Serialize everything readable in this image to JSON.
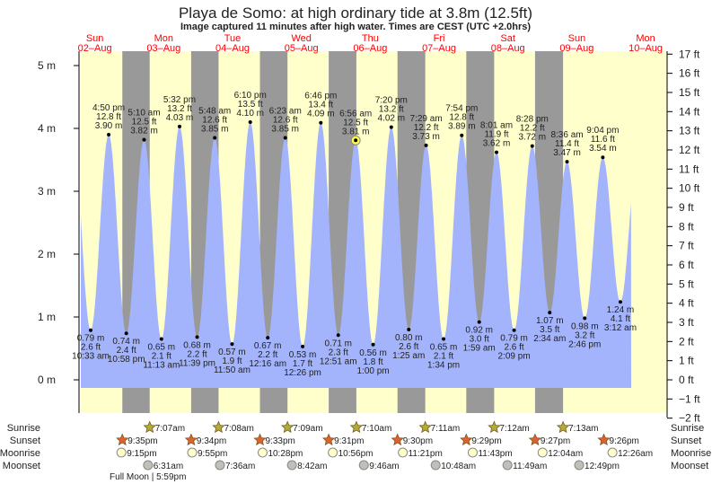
{
  "title": "Playa de Somo: at high  ordinary tide at 3.8m (12.5ft)",
  "subtitle": "Image captured 11 minutes after high water. Times are CEST (UTC +2.0hrs)",
  "colors": {
    "day": "#ffffcc",
    "night": "#999999",
    "water": "#a3b4fc",
    "daylabel": "#ff0000",
    "sunrise": "#b0ab3a",
    "sunset": "#e06030",
    "moonrise": "#ffffcc",
    "moonset": "#c0c0b8",
    "now": "#ffff44"
  },
  "chart_data": {
    "type": "area",
    "title": "Playa de Somo: at high  ordinary tide at 3.8m (12.5ft)",
    "x_unit": "hours since 02-Aug 00:00 CEST",
    "xlim": [
      7,
      211.5
    ],
    "ylim_m": [
      -0.1,
      5.3
    ],
    "days": [
      {
        "dow": "Sun",
        "date": "02–Aug"
      },
      {
        "dow": "Mon",
        "date": "03–Aug"
      },
      {
        "dow": "Tue",
        "date": "04–Aug"
      },
      {
        "dow": "Wed",
        "date": "05–Aug"
      },
      {
        "dow": "Thu",
        "date": "06–Aug"
      },
      {
        "dow": "Fri",
        "date": "07–Aug"
      },
      {
        "dow": "Sat",
        "date": "08–Aug"
      },
      {
        "dow": "Sun",
        "date": "09–Aug"
      },
      {
        "dow": "Mon",
        "date": "10–Aug"
      }
    ],
    "y_ticks_m": [
      "0 m",
      "1 m",
      "2 m",
      "3 m",
      "4 m",
      "5 m"
    ],
    "y_ticks_ft": [
      "−2 ft",
      "−1 ft",
      "0 ft",
      "1 ft",
      "2 ft",
      "3 ft",
      "4 ft",
      "5 ft",
      "6 ft",
      "7 ft",
      "8 ft",
      "9 ft",
      "10 ft",
      "11 ft",
      "12 ft",
      "13 ft",
      "14 ft",
      "15 ft",
      "16 ft",
      "17 ft"
    ],
    "extremes": [
      {
        "type": "low",
        "h": 10.55,
        "m": 0.79,
        "m_label": "0.79 m",
        "ft": "2.6 ft",
        "time": "10:33 am"
      },
      {
        "type": "high",
        "h": 16.83,
        "m": 3.9,
        "m_label": "3.90 m",
        "ft": "12.8 ft",
        "time": "4:50 pm"
      },
      {
        "type": "low",
        "h": 22.97,
        "m": 0.74,
        "m_label": "0.74 m",
        "ft": "2.4 ft",
        "time": "10:58 pm"
      },
      {
        "type": "high",
        "h": 29.17,
        "m": 3.82,
        "m_label": "3.82 m",
        "ft": "12.5 ft",
        "time": "5:10 am"
      },
      {
        "type": "low",
        "h": 35.22,
        "m": 0.65,
        "m_label": "0.65 m",
        "ft": "2.1 ft",
        "time": "11:13 am"
      },
      {
        "type": "high",
        "h": 41.53,
        "m": 4.03,
        "m_label": "4.03 m",
        "ft": "13.2 ft",
        "time": "5:32 pm"
      },
      {
        "type": "low",
        "h": 47.65,
        "m": 0.68,
        "m_label": "0.68 m",
        "ft": "2.2 ft",
        "time": "11:39 pm"
      },
      {
        "type": "high",
        "h": 53.8,
        "m": 3.85,
        "m_label": "3.85 m",
        "ft": "12.6 ft",
        "time": "5:48 am"
      },
      {
        "type": "low",
        "h": 59.83,
        "m": 0.57,
        "m_label": "0.57 m",
        "ft": "1.9 ft",
        "time": "11:50 am"
      },
      {
        "type": "high",
        "h": 66.17,
        "m": 4.1,
        "m_label": "4.10 m",
        "ft": "13.5 ft",
        "time": "6:10 pm"
      },
      {
        "type": "low",
        "h": 72.27,
        "m": 0.67,
        "m_label": "0.67 m",
        "ft": "2.2 ft",
        "time": "12:16 am"
      },
      {
        "type": "high",
        "h": 78.38,
        "m": 3.85,
        "m_label": "3.85 m",
        "ft": "12.6 ft",
        "time": "6:23 am"
      },
      {
        "type": "low",
        "h": 84.43,
        "m": 0.53,
        "m_label": "0.53 m",
        "ft": "1.7 ft",
        "time": "12:26 pm"
      },
      {
        "type": "high",
        "h": 90.77,
        "m": 4.09,
        "m_label": "4.09 m",
        "ft": "13.4 ft",
        "time": "6:46 pm"
      },
      {
        "type": "low",
        "h": 96.85,
        "m": 0.71,
        "m_label": "0.71 m",
        "ft": "2.3 ft",
        "time": "12:51 am"
      },
      {
        "type": "high",
        "h": 102.93,
        "m": 3.81,
        "m_label": "3.81 m",
        "ft": "12.5 ft",
        "time": "6:56 am",
        "current": true
      },
      {
        "type": "low",
        "h": 109.0,
        "m": 0.56,
        "m_label": "0.56 m",
        "ft": "1.8 ft",
        "time": "1:00 pm"
      },
      {
        "type": "high",
        "h": 115.33,
        "m": 4.02,
        "m_label": "4.02 m",
        "ft": "13.2 ft",
        "time": "7:20 pm"
      },
      {
        "type": "low",
        "h": 121.42,
        "m": 0.8,
        "m_label": "0.80 m",
        "ft": "2.6 ft",
        "time": "1:25 am"
      },
      {
        "type": "high",
        "h": 127.48,
        "m": 3.73,
        "m_label": "3.73 m",
        "ft": "12.2 ft",
        "time": "7:29 am"
      },
      {
        "type": "low",
        "h": 133.57,
        "m": 0.65,
        "m_label": "0.65 m",
        "ft": "2.1 ft",
        "time": "1:34 pm"
      },
      {
        "type": "high",
        "h": 139.9,
        "m": 3.89,
        "m_label": "3.89 m",
        "ft": "12.8 ft",
        "time": "7:54 pm"
      },
      {
        "type": "low",
        "h": 145.98,
        "m": 0.92,
        "m_label": "0.92 m",
        "ft": "3.0 ft",
        "time": "1:59 am"
      },
      {
        "type": "high",
        "h": 152.02,
        "m": 3.62,
        "m_label": "3.62 m",
        "ft": "11.9 ft",
        "time": "8:01 am"
      },
      {
        "type": "low",
        "h": 158.15,
        "m": 0.79,
        "m_label": "0.79 m",
        "ft": "2.6 ft",
        "time": "2:09 pm"
      },
      {
        "type": "high",
        "h": 164.47,
        "m": 3.72,
        "m_label": "3.72 m",
        "ft": "12.2 ft",
        "time": "8:28 pm"
      },
      {
        "type": "low",
        "h": 170.57,
        "m": 1.07,
        "m_label": "1.07 m",
        "ft": "3.5 ft",
        "time": "2:34 am"
      },
      {
        "type": "high",
        "h": 176.6,
        "m": 3.47,
        "m_label": "3.47 m",
        "ft": "11.4 ft",
        "time": "8:36 am"
      },
      {
        "type": "low",
        "h": 182.77,
        "m": 0.98,
        "m_label": "0.98 m",
        "ft": "3.2 ft",
        "time": "2:46 pm"
      },
      {
        "type": "high",
        "h": 189.07,
        "m": 3.54,
        "m_label": "3.54 m",
        "ft": "11.6 ft",
        "time": "9:04 pm"
      },
      {
        "type": "low",
        "h": 195.2,
        "m": 1.24,
        "m_label": "1.24 m",
        "ft": "4.1 ft",
        "time": "3:12 am"
      }
    ]
  },
  "rows": {
    "labels": {
      "sunrise": "Sunrise",
      "sunset": "Sunset",
      "moonrise": "Moonrise",
      "moonset": "Moonset"
    },
    "sunrise": [
      {
        "h": 31.12,
        "t": "7:07am"
      },
      {
        "h": 55.13,
        "t": "7:08am"
      },
      {
        "h": 79.15,
        "t": "7:09am"
      },
      {
        "h": 103.17,
        "t": "7:10am"
      },
      {
        "h": 127.18,
        "t": "7:11am"
      },
      {
        "h": 151.2,
        "t": "7:12am"
      },
      {
        "h": 175.22,
        "t": "7:13am"
      }
    ],
    "sunset": [
      {
        "h": 21.58,
        "t": "9:35pm"
      },
      {
        "h": 45.57,
        "t": "9:34pm"
      },
      {
        "h": 69.55,
        "t": "9:33pm"
      },
      {
        "h": 93.52,
        "t": "9:31pm"
      },
      {
        "h": 117.5,
        "t": "9:30pm"
      },
      {
        "h": 141.48,
        "t": "9:29pm"
      },
      {
        "h": 165.45,
        "t": "9:27pm"
      },
      {
        "h": 189.43,
        "t": "9:26pm"
      }
    ],
    "moonrise": [
      {
        "h": 21.25,
        "t": "9:15pm"
      },
      {
        "h": 45.92,
        "t": "9:55pm"
      },
      {
        "h": 70.47,
        "t": "10:28pm"
      },
      {
        "h": 94.93,
        "t": "10:56pm"
      },
      {
        "h": 119.35,
        "t": "11:21pm"
      },
      {
        "h": 143.72,
        "t": "11:43pm"
      },
      {
        "h": 168.07,
        "t": "12:04am"
      },
      {
        "h": 192.43,
        "t": "12:26am"
      }
    ],
    "moonset": [
      {
        "h": 30.52,
        "t": "6:31am"
      },
      {
        "h": 55.6,
        "t": "7:36am"
      },
      {
        "h": 80.7,
        "t": "8:42am"
      },
      {
        "h": 105.77,
        "t": "9:46am"
      },
      {
        "h": 130.8,
        "t": "10:48am"
      },
      {
        "h": 155.82,
        "t": "11:49am"
      },
      {
        "h": 180.82,
        "t": "12:49pm"
      }
    ],
    "moon_phase": "Full Moon | 5:59pm"
  }
}
